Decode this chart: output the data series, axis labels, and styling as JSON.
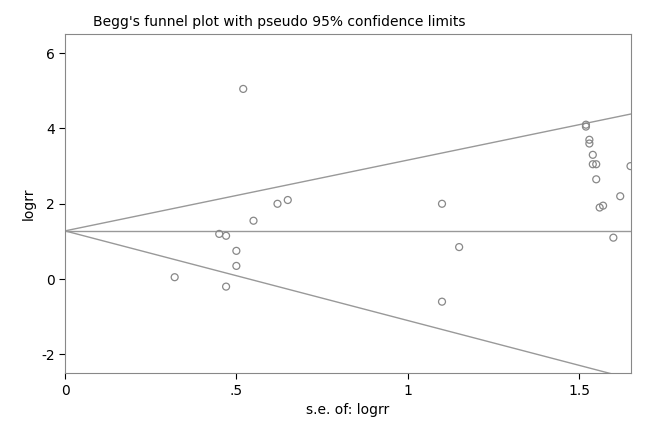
{
  "title": "Begg's funnel plot with pseudo 95% confidence limits",
  "xlabel": "s.e. of: logrr",
  "ylabel": "logrr",
  "xlim": [
    0,
    1.65
  ],
  "ylim": [
    -2.5,
    6.5
  ],
  "xticks": [
    0,
    0.5,
    1.0,
    1.5
  ],
  "xticklabels": [
    "0",
    ".5",
    "1",
    "1.5"
  ],
  "yticks": [
    -2,
    0,
    2,
    4,
    6
  ],
  "scatter_x": [
    0.32,
    0.45,
    0.47,
    0.47,
    0.5,
    0.5,
    0.52,
    0.55,
    0.62,
    0.65,
    1.1,
    1.1,
    1.15,
    1.52,
    1.52,
    1.53,
    1.53,
    1.54,
    1.54,
    1.55,
    1.55,
    1.56,
    1.57,
    1.6,
    1.62,
    1.65
  ],
  "scatter_y": [
    0.05,
    1.2,
    1.15,
    -0.2,
    0.35,
    0.75,
    5.05,
    1.55,
    2.0,
    2.1,
    2.0,
    -0.6,
    0.85,
    4.1,
    4.05,
    3.7,
    3.6,
    3.3,
    3.05,
    3.05,
    2.65,
    1.9,
    1.95,
    1.1,
    2.2,
    3.0
  ],
  "marker_color": "#888888",
  "marker_size": 5,
  "marker_lw": 0.9,
  "line_color": "#999999",
  "line_lw": 1.0,
  "mean_logrr": 1.28,
  "ci_slope_upper": 1.88,
  "ci_slope_lower": -2.38,
  "bg_color": "#ffffff",
  "font_color": "#000000",
  "spine_color": "#888888",
  "title_fontsize": 10,
  "label_fontsize": 10,
  "tick_fontsize": 10
}
